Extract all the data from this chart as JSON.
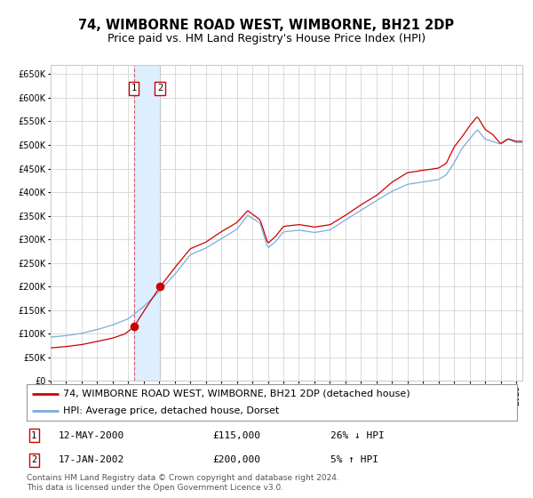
{
  "title": "74, WIMBORNE ROAD WEST, WIMBORNE, BH21 2DP",
  "subtitle": "Price paid vs. HM Land Registry's House Price Index (HPI)",
  "legend_line1": "74, WIMBORNE ROAD WEST, WIMBORNE, BH21 2DP (detached house)",
  "legend_line2": "HPI: Average price, detached house, Dorset",
  "sale1_date": "12-MAY-2000",
  "sale1_price": 115000,
  "sale1_label": "26% ↓ HPI",
  "sale1_num": "1",
  "sale2_date": "17-JAN-2002",
  "sale2_price": 200000,
  "sale2_label": "5% ↑ HPI",
  "sale2_num": "2",
  "footnote": "Contains HM Land Registry data © Crown copyright and database right 2024.\nThis data is licensed under the Open Government Licence v3.0.",
  "hpi_color": "#7aaddc",
  "price_color": "#cc0000",
  "sale_dot_color": "#cc0000",
  "shade_color": "#ddeeff",
  "grid_color": "#cccccc",
  "background_color": "#ffffff",
  "ylim": [
    0,
    670000
  ],
  "yticks": [
    0,
    50000,
    100000,
    150000,
    200000,
    250000,
    300000,
    350000,
    400000,
    450000,
    500000,
    550000,
    600000,
    650000
  ],
  "xlabel": "",
  "ylabel": "",
  "title_fontsize": 10.5,
  "subtitle_fontsize": 9,
  "axis_fontsize": 7,
  "legend_fontsize": 8,
  "table_fontsize": 8,
  "footnote_fontsize": 6.5
}
